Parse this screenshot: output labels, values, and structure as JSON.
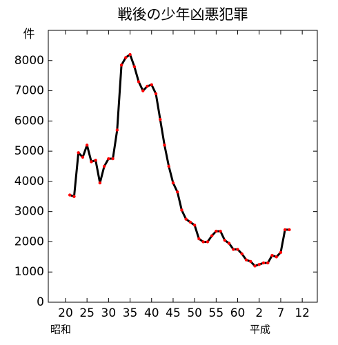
{
  "chart_data": {
    "type": "line",
    "title": "戦後の少年凶悪犯罪",
    "y_label": "件",
    "x_era_labels": [
      "昭和",
      "平成"
    ],
    "x": [
      1946,
      1947,
      1948,
      1949,
      1950,
      1951,
      1952,
      1953,
      1954,
      1955,
      1956,
      1957,
      1958,
      1959,
      1960,
      1961,
      1962,
      1963,
      1964,
      1965,
      1966,
      1967,
      1968,
      1969,
      1970,
      1971,
      1972,
      1973,
      1974,
      1975,
      1976,
      1977,
      1978,
      1979,
      1980,
      1981,
      1982,
      1983,
      1984,
      1985,
      1986,
      1987,
      1988,
      1989,
      1990,
      1991,
      1992,
      1993,
      1994,
      1995,
      1996,
      1997
    ],
    "series": [
      {
        "name": "少年凶悪犯罪",
        "color": "#000000",
        "marker_color": "#ff0000",
        "values": [
          3550,
          3500,
          4950,
          4800,
          5200,
          4650,
          4700,
          3950,
          4500,
          4750,
          4750,
          5700,
          7850,
          8100,
          8200,
          7800,
          7300,
          7000,
          7150,
          7200,
          6900,
          6050,
          5200,
          4500,
          3950,
          3650,
          3050,
          2750,
          2650,
          2550,
          2100,
          2000,
          2000,
          2200,
          2350,
          2350,
          2050,
          1950,
          1750,
          1750,
          1600,
          1400,
          1350,
          1200,
          1250,
          1300,
          1300,
          1550,
          1500,
          1650,
          2400,
          2400
        ]
      }
    ],
    "xlim": [
      1941,
      2003.5
    ],
    "xticks": [
      {
        "value": 1945,
        "label": "20"
      },
      {
        "value": 1950,
        "label": "25"
      },
      {
        "value": 1955,
        "label": "30"
      },
      {
        "value": 1960,
        "label": "35"
      },
      {
        "value": 1965,
        "label": "40"
      },
      {
        "value": 1970,
        "label": "45"
      },
      {
        "value": 1975,
        "label": "50"
      },
      {
        "value": 1980,
        "label": "55"
      },
      {
        "value": 1985,
        "label": "60"
      },
      {
        "value": 1990,
        "label": "2"
      },
      {
        "value": 1995,
        "label": "7"
      },
      {
        "value": 2000,
        "label": "12"
      }
    ],
    "ylim": [
      0,
      9000
    ],
    "yticks": [
      0,
      1000,
      2000,
      3000,
      4000,
      5000,
      6000,
      7000,
      8000
    ]
  }
}
